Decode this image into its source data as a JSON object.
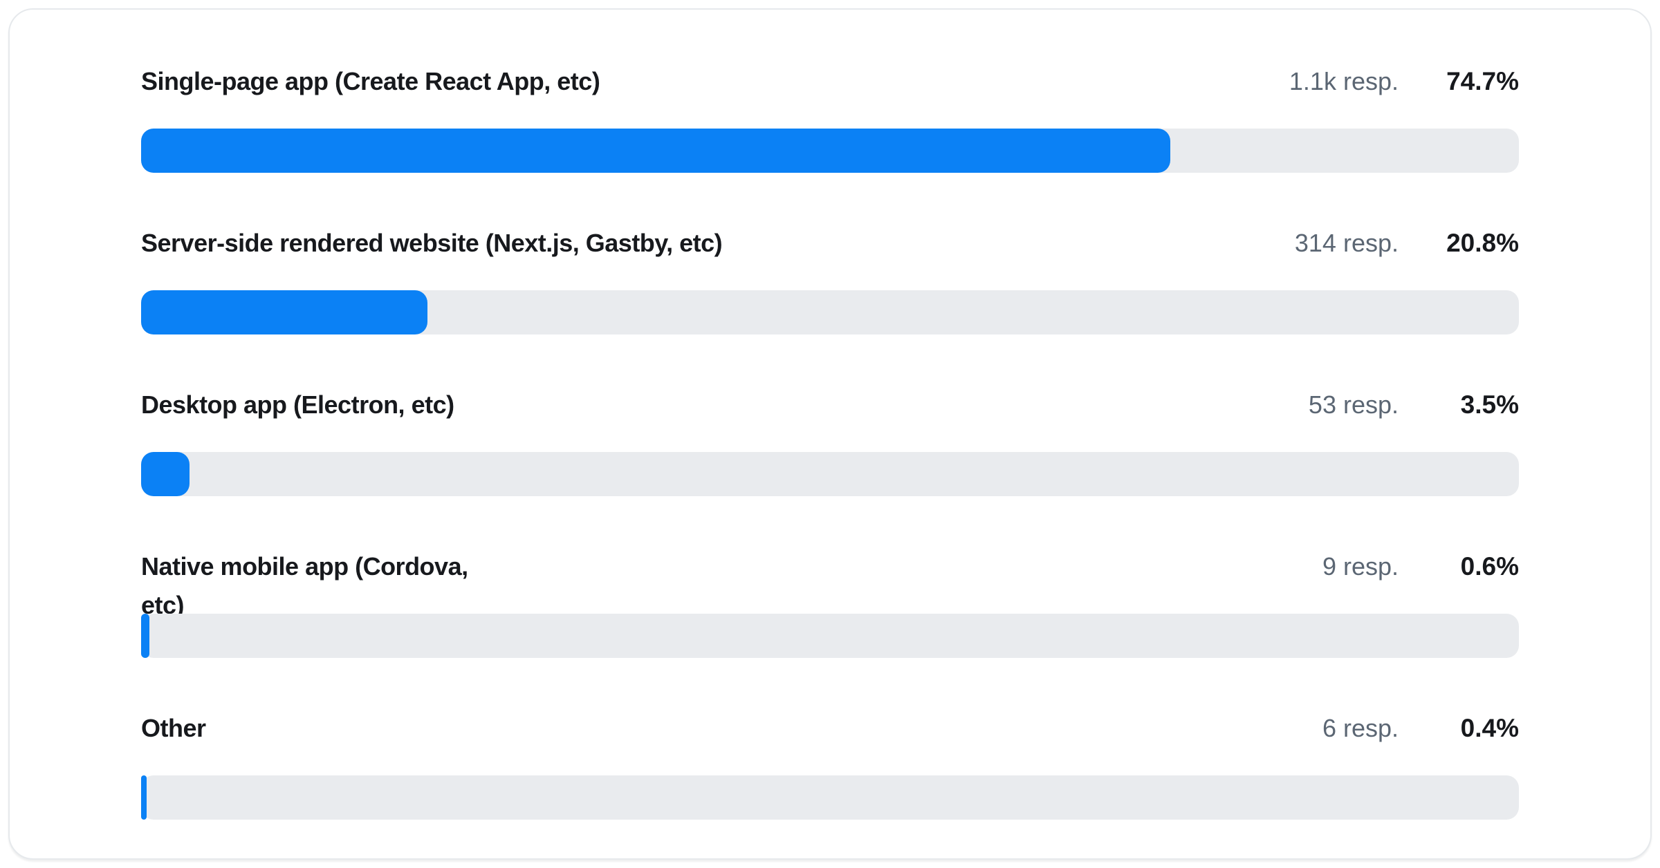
{
  "colors": {
    "bar_fill": "#0b81f5",
    "bar_track": "#e9ebee",
    "label_text": "#17191d",
    "responses_text": "#5b6673",
    "card_border": "#e6e9ec",
    "background": "#ffffff"
  },
  "card": {
    "rows": [
      {
        "label": "Single-page app (Create React App, etc)",
        "responses": "1.1k resp.",
        "percent": "74.7%",
        "value": 74.7
      },
      {
        "label": "Server-side rendered website (Next.js, Gastby, etc)",
        "responses": "314 resp.",
        "percent": "20.8%",
        "value": 20.8
      },
      {
        "label": "Desktop app (Electron, etc)",
        "responses": "53 resp.",
        "percent": "3.5%",
        "value": 3.5
      },
      {
        "label": "Native mobile app (Cordova,\netc)",
        "responses": "9 resp.",
        "percent": "0.6%",
        "value": 0.6
      },
      {
        "label": "Other",
        "responses": "6 resp.",
        "percent": "0.4%",
        "value": 0.4
      }
    ]
  },
  "chart_data": {
    "type": "bar",
    "orientation": "horizontal",
    "categories": [
      "Single-page app (Create React App, etc)",
      "Server-side rendered website (Next.js, Gastby, etc)",
      "Desktop app (Electron, etc)",
      "Native mobile app (Cordova, etc)",
      "Other"
    ],
    "values": [
      74.7,
      20.8,
      3.5,
      0.6,
      0.4
    ],
    "value_labels": [
      "74.7%",
      "20.8%",
      "3.5%",
      "0.6%",
      "0.4%"
    ],
    "response_counts": [
      "1.1k resp.",
      "314 resp.",
      "53 resp.",
      "9 resp.",
      "6 resp."
    ],
    "title": "",
    "xlabel": "",
    "ylabel": "",
    "xlim": [
      0,
      100
    ],
    "unit": "%",
    "grid": false,
    "legend": false
  }
}
